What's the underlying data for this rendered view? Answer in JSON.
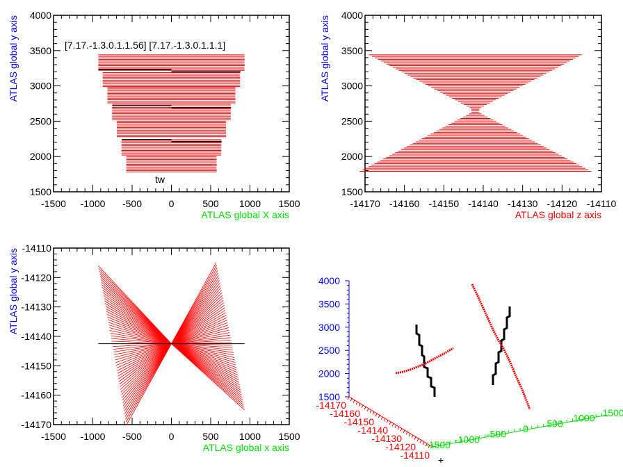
{
  "colors": {
    "frame": "#000000",
    "track": "#ff0000",
    "segment": "#000000",
    "y_axis": "#0000ff",
    "x_axis": "#00e000",
    "z_axis": "#ff0000"
  },
  "chart_data": [
    {
      "type": "line",
      "panel": "top-left",
      "xlabel": "ATLAS global X axis",
      "ylabel": "ATLAS global y axis",
      "xlim": [
        -1500,
        1500
      ],
      "ylim": [
        1500,
        4000
      ],
      "xticks": [
        "-1500",
        "-1000",
        "-500",
        "0",
        "500",
        "1000",
        "1500"
      ],
      "yticks": [
        "1500",
        "2000",
        "2500",
        "3000",
        "3500",
        "4000"
      ],
      "annotations": [
        "[7.17.-1.3.0.1.1.56] [7.17.-1.3.0.1.1.1]",
        "tw"
      ],
      "bands": [
        {
          "y": [
            3220,
            3440
          ],
          "x": 930
        },
        {
          "y": [
            2990,
            3190
          ],
          "x": 875
        },
        {
          "y": [
            2760,
            2980
          ],
          "x": 815
        },
        {
          "y": [
            2520,
            2740
          ],
          "x": 755
        },
        {
          "y": [
            2280,
            2500
          ],
          "x": 695
        },
        {
          "y": [
            2020,
            2240
          ],
          "x": 635
        },
        {
          "y": [
            1780,
            2000
          ],
          "x": 575
        }
      ],
      "black_segments": [
        {
          "y": 3230,
          "x": [
            -930,
            0
          ]
        },
        {
          "y": 3200,
          "x": [
            0,
            880
          ]
        },
        {
          "y": 2720,
          "x": [
            -750,
            0
          ]
        },
        {
          "y": 2690,
          "x": [
            0,
            760
          ]
        },
        {
          "y": 2240,
          "x": [
            -630,
            0
          ]
        },
        {
          "y": 2210,
          "x": [
            0,
            640
          ]
        }
      ]
    },
    {
      "type": "line",
      "panel": "top-right",
      "xlabel": "ATLAS global z axis",
      "ylabel": "ATLAS global y axis",
      "xlim": [
        -14170,
        -14110
      ],
      "ylim": [
        1500,
        4000
      ],
      "xticks": [
        "-14170",
        "-14160",
        "-14150",
        "-14140",
        "-14130",
        "-14120",
        "-14110"
      ],
      "yticks": [
        "1500",
        "2000",
        "2500",
        "3000",
        "3500",
        "4000"
      ],
      "center_z": -14142,
      "waist_y": 2650,
      "y_range": [
        1790,
        3440
      ],
      "max_half_width": 27
    },
    {
      "type": "line",
      "panel": "bottom-left",
      "xlabel": "ATLAS global x axis",
      "ylabel": "ATLAS global y axis",
      "xlim": [
        -1500,
        1500
      ],
      "ylim": [
        -14170,
        -14110
      ],
      "xticks": [
        "-1500",
        "-1000",
        "-500",
        "0",
        "500",
        "1000",
        "1500"
      ],
      "yticks": [
        "-14170",
        "-14160",
        "-14150",
        "-14140",
        "-14130",
        "-14120",
        "-14110"
      ],
      "center": [
        0,
        -14142.5
      ],
      "left_edge": [
        [
          -930,
          -14116
        ],
        [
          -570,
          -14170
        ]
      ],
      "right_edge": [
        [
          570,
          -14115
        ],
        [
          930,
          -14165
        ]
      ],
      "black_line": {
        "y": -14142.5,
        "x": [
          -930,
          930
        ]
      }
    },
    {
      "type": "scatter",
      "panel": "bottom-right-3d",
      "yticks": [
        "1500",
        "2000",
        "2500",
        "3000",
        "3500",
        "4000"
      ],
      "zticks": [
        "-14170",
        "-14160",
        "-14150",
        "-14140",
        "-14130",
        "-14120",
        "-14110"
      ],
      "xticks": [
        "-1500",
        "-1000",
        "-500",
        "0",
        "500",
        "1000",
        "1500"
      ]
    }
  ]
}
